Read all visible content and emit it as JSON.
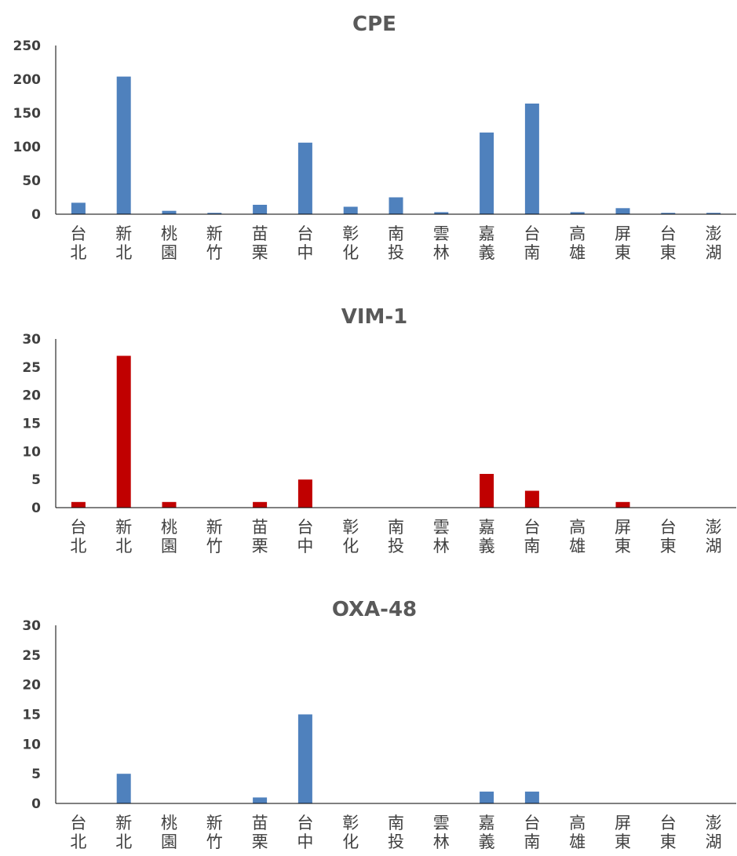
{
  "chart_data": [
    {
      "type": "bar",
      "title": "CPE",
      "categories": [
        "台北",
        "新北",
        "桃園",
        "新竹",
        "苗栗",
        "台中",
        "彰化",
        "南投",
        "雲林",
        "嘉義",
        "台南",
        "高雄",
        "屏東",
        "台東",
        "澎湖"
      ],
      "values": [
        17,
        204,
        5,
        2,
        14,
        106,
        11,
        25,
        3,
        121,
        164,
        3,
        9,
        2,
        2
      ],
      "yticks": [
        0,
        50,
        100,
        150,
        200,
        250
      ],
      "ylim": [
        0,
        250
      ],
      "color": "#4f81bd",
      "grid": false,
      "legend": "none"
    },
    {
      "type": "bar",
      "title": "VIM-1",
      "categories": [
        "台北",
        "新北",
        "桃園",
        "新竹",
        "苗栗",
        "台中",
        "彰化",
        "南投",
        "雲林",
        "嘉義",
        "台南",
        "高雄",
        "屏東",
        "台東",
        "澎湖"
      ],
      "values": [
        1,
        27,
        1,
        0,
        1,
        5,
        0,
        0,
        0,
        6,
        3,
        0,
        1,
        0,
        0
      ],
      "yticks": [
        0,
        5,
        10,
        15,
        20,
        25,
        30
      ],
      "ylim": [
        0,
        30
      ],
      "color": "#c00000",
      "grid": false,
      "legend": "none"
    },
    {
      "type": "bar",
      "title": "OXA-48",
      "categories": [
        "台北",
        "新北",
        "桃園",
        "新竹",
        "苗栗",
        "台中",
        "彰化",
        "南投",
        "雲林",
        "嘉義",
        "台南",
        "高雄",
        "屏東",
        "台東",
        "澎湖"
      ],
      "values": [
        0,
        5,
        0,
        0,
        1,
        15,
        0,
        0,
        0,
        2,
        2,
        0,
        0,
        0,
        0
      ],
      "yticks": [
        0,
        5,
        10,
        15,
        20,
        25,
        30
      ],
      "ylim": [
        0,
        30
      ],
      "color": "#4f81bd",
      "grid": false,
      "legend": "none"
    }
  ]
}
